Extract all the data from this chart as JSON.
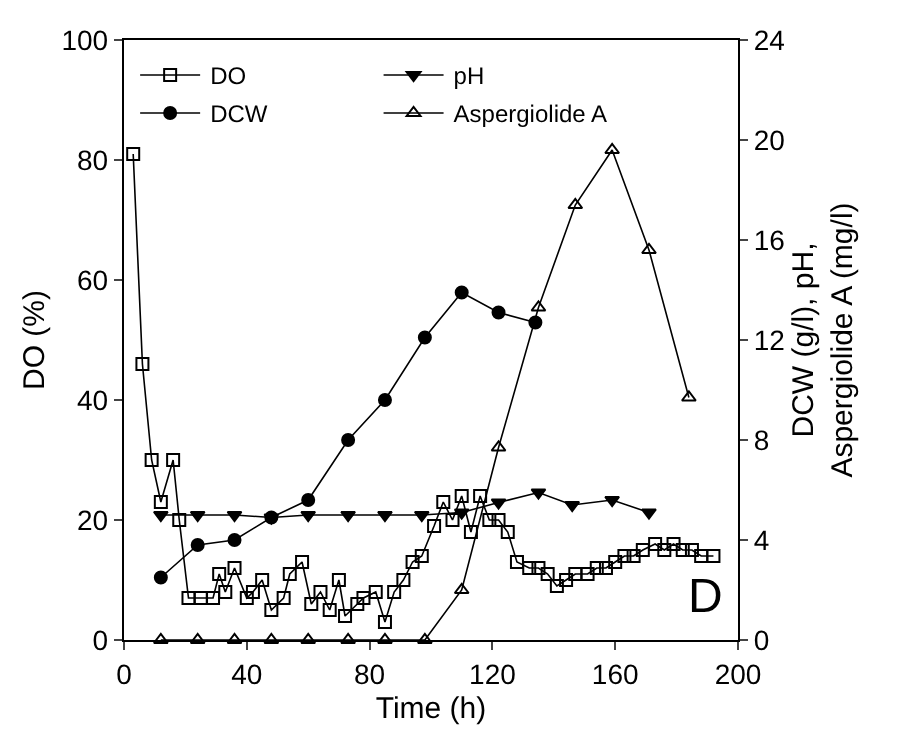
{
  "chart_data": {
    "type": "line",
    "xlabel": "Time (h)",
    "ylabel": "DO (%)",
    "y2label": "DCW (g/l), pH,\nAspergiolide A (mg/l)",
    "xlim": [
      0,
      200
    ],
    "xticks": [
      0,
      40,
      80,
      120,
      160,
      200
    ],
    "ylim": [
      0,
      100
    ],
    "yticks": [
      0,
      20,
      40,
      60,
      80,
      100
    ],
    "y2lim": [
      0,
      24
    ],
    "y2ticks": [
      0,
      4,
      8,
      12,
      16,
      20,
      24
    ],
    "legend": "top left",
    "grid": false,
    "line_style": "solid",
    "annotations": [
      "D"
    ],
    "series": [
      {
        "name": "DO",
        "color": "#000000",
        "marker": "square",
        "x": [
          3,
          6,
          9,
          12,
          16,
          18,
          21,
          25,
          29,
          31,
          33,
          36,
          40,
          42,
          45,
          48,
          52,
          54,
          58,
          61,
          64,
          67,
          70,
          72,
          76,
          78,
          82,
          85,
          88,
          91,
          94,
          97,
          101,
          104,
          107,
          110,
          113,
          116,
          119,
          122,
          125,
          128,
          132,
          135,
          138,
          141,
          144,
          147,
          151,
          154,
          157,
          160,
          163,
          166,
          169,
          173,
          176,
          179,
          182,
          185,
          188,
          192
        ],
        "values": [
          81,
          46,
          30,
          23,
          30,
          20,
          7,
          7,
          7,
          11,
          8,
          12,
          7,
          8,
          10,
          5,
          7,
          11,
          13,
          6,
          8,
          5,
          10,
          4,
          6,
          7,
          8,
          3,
          8,
          10,
          13,
          14,
          19,
          23,
          20,
          24,
          18,
          24,
          20,
          20,
          18,
          13,
          12,
          12,
          11,
          9,
          10,
          11,
          11,
          12,
          12,
          13,
          14,
          14,
          15,
          16,
          15,
          16,
          15,
          15,
          14,
          14
        ]
      },
      {
        "name": "pH",
        "color": "#000000",
        "marker": "triangle-down",
        "axis": "y2",
        "x": [
          12,
          24,
          36,
          48,
          60,
          73,
          85,
          97,
          110,
          122,
          135,
          146,
          159,
          171
        ],
        "values": [
          5.0,
          5.0,
          5.0,
          4.9,
          5.0,
          5.0,
          5.0,
          5.0,
          5.1,
          5.5,
          5.9,
          5.4,
          5.6,
          5.1
        ]
      },
      {
        "name": "DCW",
        "color": "#000000",
        "marker": "circle",
        "axis": "y2",
        "x": [
          12,
          24,
          36,
          48,
          60,
          73,
          85,
          98,
          110,
          122,
          134
        ],
        "values": [
          2.5,
          3.8,
          4.0,
          4.9,
          5.6,
          8.0,
          9.6,
          12.1,
          13.9,
          13.1,
          12.7
        ]
      },
      {
        "name": "Aspergiolide A",
        "color": "#000000",
        "marker": "triangle",
        "axis": "y2",
        "x": [
          12,
          24,
          36,
          48,
          60,
          73,
          85,
          98,
          110,
          122,
          135,
          147,
          159,
          171,
          184
        ],
        "values": [
          0,
          0,
          0,
          0,
          0,
          0,
          0,
          0,
          2.0,
          7.7,
          13.3,
          17.4,
          19.6,
          15.6,
          9.7
        ]
      }
    ]
  }
}
